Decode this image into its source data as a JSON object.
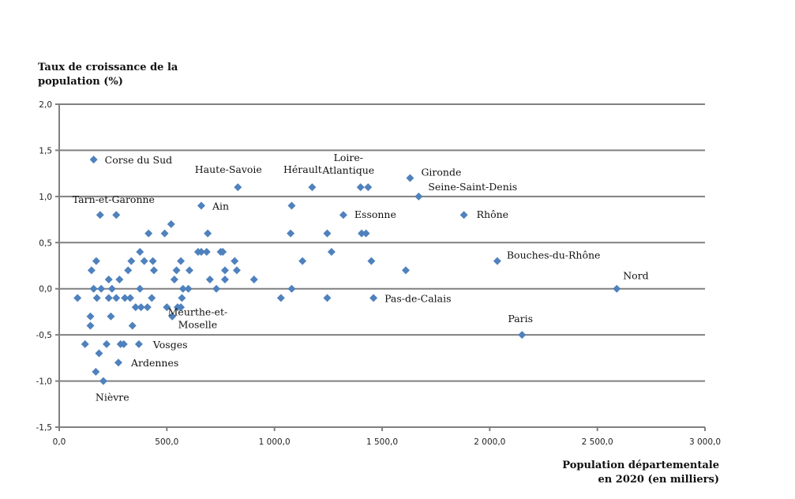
{
  "chart_data": {
    "type": "scatter",
    "title": "",
    "ylabel_lines": [
      "Taux de croissance de la",
      "population (%)"
    ],
    "xlabel_lines": [
      "Population départementale",
      "en 2020 (en milliers)"
    ],
    "xlim": [
      0,
      3000
    ],
    "ylim": [
      -1.5,
      2.0
    ],
    "xticks": [
      0,
      500,
      1000,
      1500,
      2000,
      2500,
      3000
    ],
    "xtick_labels": [
      "0,0",
      "500,0",
      "1 000,0",
      "1 500,0",
      "2 000,0",
      "2 500,0",
      "3 000,0"
    ],
    "yticks": [
      2.0,
      1.5,
      1.0,
      0.5,
      0.0,
      -0.5,
      -1.0,
      -1.5
    ],
    "ytick_labels": [
      "2,0",
      "1,5",
      "1,0",
      "0,5",
      "0,0",
      "-0,5",
      "-1,0",
      "-1,5"
    ],
    "grid": "horizontal",
    "marker_color": "#4F81BD",
    "grid_color": "#808080",
    "points": [
      {
        "x": 160,
        "y": 1.4,
        "label": "Corse du Sud"
      },
      {
        "x": 830,
        "y": 1.1,
        "label": "Haute-Savoie"
      },
      {
        "x": 1175,
        "y": 1.1,
        "label": "Hérault"
      },
      {
        "x": 1400,
        "y": 1.1,
        "label": ""
      },
      {
        "x": 1435,
        "y": 1.1,
        "label": "Loire-Atlantique"
      },
      {
        "x": 1630,
        "y": 1.2,
        "label": "Gironde"
      },
      {
        "x": 1670,
        "y": 1.0,
        "label": "Seine-Saint-Denis"
      },
      {
        "x": 1880,
        "y": 0.8,
        "label": "Rhône"
      },
      {
        "x": 2035,
        "y": 0.3,
        "label": "Bouches-du-Rhône"
      },
      {
        "x": 2590,
        "y": 0.0,
        "label": "Nord"
      },
      {
        "x": 2150,
        "y": -0.5,
        "label": "Paris"
      },
      {
        "x": 1460,
        "y": -0.1,
        "label": "Pas-de-Calais"
      },
      {
        "x": 1320,
        "y": 0.8,
        "label": "Essonne"
      },
      {
        "x": 660,
        "y": 0.9,
        "label": "Ain"
      },
      {
        "x": 190,
        "y": 0.8,
        "label": "Tarn-et-Garonne"
      },
      {
        "x": 265,
        "y": 0.8,
        "label": ""
      },
      {
        "x": 370,
        "y": -0.6,
        "label": "Vosges"
      },
      {
        "x": 275,
        "y": -0.8,
        "label": "Ardennes"
      },
      {
        "x": 205,
        "y": -1.0,
        "label": "Nièvre"
      },
      {
        "x": 570,
        "y": -0.1,
        "label": "Meurthe-et-Moselle"
      },
      {
        "x": 85,
        "y": -0.1,
        "label": ""
      },
      {
        "x": 120,
        "y": -0.6,
        "label": ""
      },
      {
        "x": 145,
        "y": -0.3,
        "label": ""
      },
      {
        "x": 145,
        "y": -0.4,
        "label": ""
      },
      {
        "x": 150,
        "y": 0.2,
        "label": ""
      },
      {
        "x": 160,
        "y": 0.0,
        "label": ""
      },
      {
        "x": 172,
        "y": 0.3,
        "label": ""
      },
      {
        "x": 175,
        "y": -0.1,
        "label": ""
      },
      {
        "x": 170,
        "y": -0.9,
        "label": ""
      },
      {
        "x": 185,
        "y": -0.7,
        "label": ""
      },
      {
        "x": 195,
        "y": 0.0,
        "label": ""
      },
      {
        "x": 220,
        "y": -0.6,
        "label": ""
      },
      {
        "x": 230,
        "y": 0.1,
        "label": ""
      },
      {
        "x": 230,
        "y": -0.1,
        "label": ""
      },
      {
        "x": 240,
        "y": -0.3,
        "label": ""
      },
      {
        "x": 245,
        "y": 0.0,
        "label": ""
      },
      {
        "x": 265,
        "y": -0.1,
        "label": ""
      },
      {
        "x": 280,
        "y": 0.1,
        "label": ""
      },
      {
        "x": 285,
        "y": -0.6,
        "label": ""
      },
      {
        "x": 300,
        "y": -0.6,
        "label": ""
      },
      {
        "x": 305,
        "y": -0.1,
        "label": ""
      },
      {
        "x": 320,
        "y": 0.2,
        "label": ""
      },
      {
        "x": 330,
        "y": -0.1,
        "label": ""
      },
      {
        "x": 335,
        "y": 0.3,
        "label": ""
      },
      {
        "x": 340,
        "y": -0.4,
        "label": ""
      },
      {
        "x": 355,
        "y": -0.2,
        "label": ""
      },
      {
        "x": 375,
        "y": 0.4,
        "label": ""
      },
      {
        "x": 375,
        "y": 0.0,
        "label": ""
      },
      {
        "x": 380,
        "y": -0.2,
        "label": ""
      },
      {
        "x": 395,
        "y": 0.3,
        "label": ""
      },
      {
        "x": 410,
        "y": -0.2,
        "label": ""
      },
      {
        "x": 415,
        "y": 0.6,
        "label": ""
      },
      {
        "x": 430,
        "y": -0.1,
        "label": ""
      },
      {
        "x": 435,
        "y": 0.3,
        "label": ""
      },
      {
        "x": 440,
        "y": 0.2,
        "label": ""
      },
      {
        "x": 490,
        "y": 0.6,
        "label": ""
      },
      {
        "x": 500,
        "y": -0.2,
        "label": ""
      },
      {
        "x": 520,
        "y": 0.7,
        "label": ""
      },
      {
        "x": 525,
        "y": -0.3,
        "label": ""
      },
      {
        "x": 535,
        "y": 0.1,
        "label": ""
      },
      {
        "x": 545,
        "y": 0.2,
        "label": ""
      },
      {
        "x": 550,
        "y": -0.2,
        "label": ""
      },
      {
        "x": 565,
        "y": 0.3,
        "label": ""
      },
      {
        "x": 565,
        "y": -0.2,
        "label": ""
      },
      {
        "x": 575,
        "y": 0.0,
        "label": ""
      },
      {
        "x": 600,
        "y": 0.0,
        "label": ""
      },
      {
        "x": 605,
        "y": 0.2,
        "label": ""
      },
      {
        "x": 645,
        "y": 0.4,
        "label": ""
      },
      {
        "x": 660,
        "y": 0.4,
        "label": ""
      },
      {
        "x": 685,
        "y": 0.4,
        "label": ""
      },
      {
        "x": 690,
        "y": 0.6,
        "label": ""
      },
      {
        "x": 700,
        "y": 0.1,
        "label": ""
      },
      {
        "x": 730,
        "y": 0.0,
        "label": ""
      },
      {
        "x": 750,
        "y": 0.4,
        "label": ""
      },
      {
        "x": 760,
        "y": 0.4,
        "label": ""
      },
      {
        "x": 770,
        "y": 0.2,
        "label": ""
      },
      {
        "x": 770,
        "y": 0.1,
        "label": ""
      },
      {
        "x": 815,
        "y": 0.3,
        "label": ""
      },
      {
        "x": 825,
        "y": 0.2,
        "label": ""
      },
      {
        "x": 905,
        "y": 0.1,
        "label": ""
      },
      {
        "x": 1030,
        "y": -0.1,
        "label": ""
      },
      {
        "x": 1075,
        "y": 0.6,
        "label": ""
      },
      {
        "x": 1080,
        "y": 0.9,
        "label": ""
      },
      {
        "x": 1080,
        "y": 0.0,
        "label": ""
      },
      {
        "x": 1130,
        "y": 0.3,
        "label": ""
      },
      {
        "x": 1245,
        "y": 0.6,
        "label": ""
      },
      {
        "x": 1245,
        "y": -0.1,
        "label": ""
      },
      {
        "x": 1265,
        "y": 0.4,
        "label": ""
      },
      {
        "x": 1405,
        "y": 0.6,
        "label": ""
      },
      {
        "x": 1425,
        "y": 0.6,
        "label": ""
      },
      {
        "x": 1450,
        "y": 0.3,
        "label": ""
      },
      {
        "x": 1610,
        "y": 0.2,
        "label": ""
      }
    ]
  }
}
